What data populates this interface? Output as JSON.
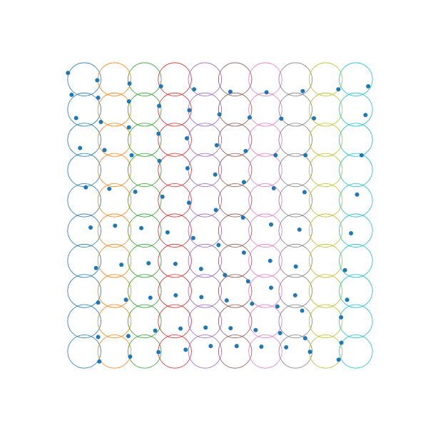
{
  "chart_data": {
    "type": "scatter",
    "title": "",
    "xlabel": "",
    "ylabel": "",
    "grid": false,
    "axes_visible": false,
    "xlim": [
      0,
      10
    ],
    "ylim": [
      0,
      10
    ],
    "aspect": "equal",
    "circle_radius": 0.55,
    "colors": [
      "#1f77b4",
      "#ff7f0e",
      "#2ca02c",
      "#d62728",
      "#9467bd",
      "#8c564b",
      "#e377c2",
      "#7f7f7f",
      "#bcbd22",
      "#17becf"
    ],
    "point_color": "#1f77b4",
    "circles": {
      "x": [
        0.5,
        1.5,
        2.5,
        3.5,
        4.5,
        5.5,
        6.5,
        7.5,
        8.5,
        9.5
      ],
      "y": [
        0.5,
        1.5,
        2.5,
        3.5,
        4.5,
        5.5,
        6.5,
        7.5,
        8.5,
        9.5
      ]
    },
    "points": [
      {
        "x": -0.04,
        "y": 9.71
      },
      {
        "x": 0.93,
        "y": 9.47
      },
      {
        "x": 2.0,
        "y": 9.36
      },
      {
        "x": 3.04,
        "y": 9.27
      },
      {
        "x": 4.14,
        "y": 9.17
      },
      {
        "x": 5.34,
        "y": 9.09
      },
      {
        "x": 6.54,
        "y": 9.07
      },
      {
        "x": 7.74,
        "y": 9.11
      },
      {
        "x": 8.92,
        "y": 9.17
      },
      {
        "x": 9.91,
        "y": 9.27
      },
      {
        "x": 0.08,
        "y": 8.99
      },
      {
        "x": 0.96,
        "y": 8.89
      },
      {
        "x": 1.98,
        "y": 8.77
      },
      {
        "x": 2.98,
        "y": 8.62
      },
      {
        "x": 3.98,
        "y": 8.48
      },
      {
        "x": 4.98,
        "y": 8.34
      },
      {
        "x": 5.98,
        "y": 8.24
      },
      {
        "x": 7.03,
        "y": 8.2
      },
      {
        "x": 8.11,
        "y": 8.21
      },
      {
        "x": 9.82,
        "y": 8.32
      },
      {
        "x": 0.23,
        "y": 8.22
      },
      {
        "x": 1.05,
        "y": 8.09
      },
      {
        "x": 1.98,
        "y": 7.91
      },
      {
        "x": 2.96,
        "y": 7.7
      },
      {
        "x": 3.9,
        "y": 7.55
      },
      {
        "x": 4.89,
        "y": 7.32
      },
      {
        "x": 5.85,
        "y": 7.13
      },
      {
        "x": 6.84,
        "y": 6.99
      },
      {
        "x": 7.83,
        "y": 6.99
      },
      {
        "x": 9.69,
        "y": 6.99
      },
      {
        "x": 0.36,
        "y": 7.23
      },
      {
        "x": 1.17,
        "y": 7.16
      },
      {
        "x": 2.07,
        "y": 6.99
      },
      {
        "x": 2.99,
        "y": 6.8
      },
      {
        "x": 3.92,
        "y": 6.56
      },
      {
        "x": 4.84,
        "y": 6.35
      },
      {
        "x": 5.79,
        "y": 6.1
      },
      {
        "x": 6.78,
        "y": 5.9
      },
      {
        "x": 7.8,
        "y": 5.77
      },
      {
        "x": 9.54,
        "y": 5.69
      },
      {
        "x": 0.55,
        "y": 5.93
      },
      {
        "x": 1.33,
        "y": 5.88
      },
      {
        "x": 2.19,
        "y": 5.78
      },
      {
        "x": 3.09,
        "y": 5.62
      },
      {
        "x": 3.97,
        "y": 5.42
      },
      {
        "x": 4.86,
        "y": 5.18
      },
      {
        "x": 5.76,
        "y": 4.93
      },
      {
        "x": 6.69,
        "y": 4.7
      },
      {
        "x": 7.63,
        "y": 4.53
      },
      {
        "x": 9.34,
        "y": 4.41
      },
      {
        "x": 0.71,
        "y": 4.6
      },
      {
        "x": 1.52,
        "y": 4.66
      },
      {
        "x": 2.39,
        "y": 4.58
      },
      {
        "x": 3.26,
        "y": 4.44
      },
      {
        "x": 4.11,
        "y": 4.25
      },
      {
        "x": 4.95,
        "y": 4.02
      },
      {
        "x": 5.79,
        "y": 3.77
      },
      {
        "x": 6.66,
        "y": 3.5
      },
      {
        "x": 7.51,
        "y": 3.31
      },
      {
        "x": 9.14,
        "y": 3.19
      },
      {
        "x": 0.89,
        "y": 3.26
      },
      {
        "x": 1.73,
        "y": 3.37
      },
      {
        "x": 2.63,
        "y": 3.42
      },
      {
        "x": 3.52,
        "y": 3.4
      },
      {
        "x": 4.37,
        "y": 3.23
      },
      {
        "x": 5.16,
        "y": 3.03
      },
      {
        "x": 5.93,
        "y": 2.82
      },
      {
        "x": 6.69,
        "y": 2.61
      },
      {
        "x": 7.49,
        "y": 2.36
      },
      {
        "x": 9.21,
        "y": 2.21
      },
      {
        "x": 0.96,
        "y": 2.12
      },
      {
        "x": 1.88,
        "y": 2.21
      },
      {
        "x": 2.69,
        "y": 2.28
      },
      {
        "x": 3.53,
        "y": 2.36
      },
      {
        "x": 4.38,
        "y": 2.3
      },
      {
        "x": 5.22,
        "y": 2.19
      },
      {
        "x": 6.06,
        "y": 2.08
      },
      {
        "x": 6.9,
        "y": 1.99
      },
      {
        "x": 7.72,
        "y": 1.85
      },
      {
        "x": 9.01,
        "y": 1.63
      },
      {
        "x": 0.96,
        "y": 0.98
      },
      {
        "x": 1.96,
        "y": 1.01
      },
      {
        "x": 2.85,
        "y": 1.19
      },
      {
        "x": 3.69,
        "y": 1.26
      },
      {
        "x": 4.52,
        "y": 1.29
      },
      {
        "x": 5.35,
        "y": 1.27
      },
      {
        "x": 6.18,
        "y": 1.21
      },
      {
        "x": 6.99,
        "y": 1.11
      },
      {
        "x": 7.82,
        "y": 0.94
      },
      {
        "x": 9.02,
        "y": 0.79
      },
      {
        "x": 1.0,
        "y": 0.17
      },
      {
        "x": 2.02,
        "y": 0.33
      },
      {
        "x": 2.96,
        "y": 0.48
      },
      {
        "x": 3.86,
        "y": 0.56
      },
      {
        "x": 4.69,
        "y": 0.68
      },
      {
        "x": 5.55,
        "y": 0.68
      },
      {
        "x": 6.37,
        "y": 0.66
      },
      {
        "x": 7.19,
        "y": 0.64
      },
      {
        "x": 7.98,
        "y": 0.49
      },
      {
        "x": 8.93,
        "y": 0.23
      }
    ]
  }
}
